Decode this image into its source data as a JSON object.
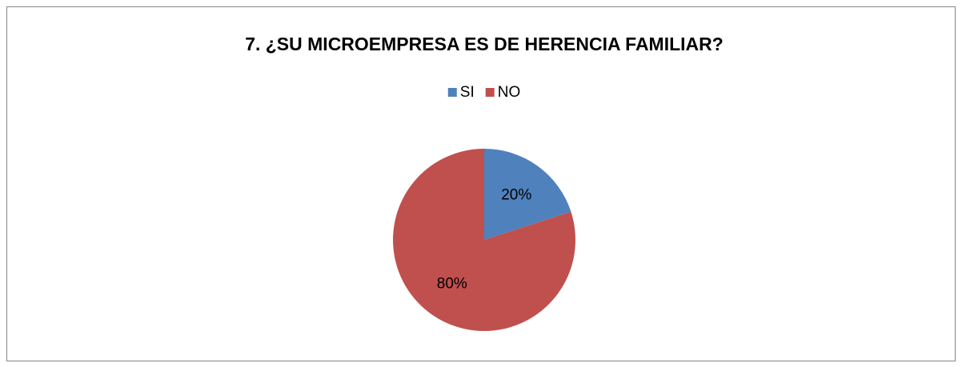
{
  "chart_data": {
    "type": "pie",
    "title": "7. ¿SU MICROEMPRESA ES DE HERENCIA FAMILIAR?",
    "categories": [
      "SI",
      "NO"
    ],
    "values": [
      20,
      80
    ],
    "value_labels": [
      "20%",
      "80%"
    ],
    "colors": [
      "#4f81bd",
      "#c0504d"
    ],
    "legend": "top"
  }
}
